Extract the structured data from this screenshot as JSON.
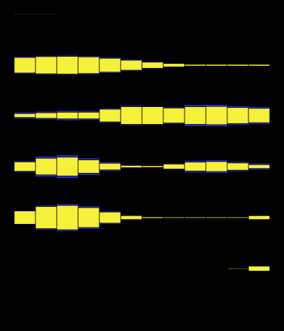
{
  "chart_data": {
    "type": "bar",
    "subtype": "symmetric-stream-rows",
    "background": "#000000",
    "bar_color": "#f5f03a",
    "edge_color": "#2a2ad8",
    "columns": 12,
    "grid": false,
    "legend": "none",
    "rows": [
      {
        "values": [
          0.12,
          0.12,
          0.1,
          0.1,
          0.08,
          0.07,
          0.06,
          0.04,
          0.03,
          0.03,
          0.02,
          0.01
        ],
        "edge": [
          0,
          0,
          0,
          0,
          0,
          0,
          0,
          0,
          0,
          0,
          0,
          0
        ]
      },
      {
        "values": [
          2.8,
          3.1,
          3.2,
          3.0,
          2.5,
          1.8,
          1.1,
          0.6,
          0.3,
          0.3,
          0.3,
          0.3
        ],
        "edge": [
          0.15,
          0.15,
          0.15,
          0.15,
          0.15,
          0.15,
          0.12,
          0.1,
          0.05,
          0.05,
          0.05,
          0.05
        ]
      },
      {
        "values": [
          0.7,
          1.0,
          1.2,
          1.2,
          2.3,
          3.2,
          3.2,
          2.7,
          3.2,
          3.3,
          2.9,
          2.6
        ],
        "edge": [
          0.2,
          0.2,
          0.25,
          0.2,
          0.15,
          0.15,
          0.1,
          0.15,
          0.3,
          0.3,
          0.25,
          0.25
        ]
      },
      {
        "values": [
          1.7,
          3.0,
          3.4,
          2.4,
          1.2,
          0.4,
          0.3,
          0.9,
          1.6,
          1.8,
          1.3,
          0.7
        ],
        "edge": [
          0.15,
          0.3,
          0.35,
          0.3,
          0.2,
          0.1,
          0.05,
          0.1,
          0.25,
          0.25,
          0.2,
          0.2
        ]
      },
      {
        "values": [
          2.4,
          4.0,
          4.4,
          3.6,
          2.0,
          0.7,
          0.25,
          0.2,
          0.2,
          0.2,
          0.2,
          0.7
        ],
        "edge": [
          0.05,
          0.15,
          0.25,
          0.25,
          0.15,
          0.1,
          0,
          0,
          0,
          0,
          0,
          0
        ]
      },
      {
        "values": [
          0.03,
          0.05,
          0.07,
          0.08,
          0.06,
          0.05,
          0.04,
          0.04,
          0.05,
          0.06,
          0.15,
          0.9
        ],
        "edge": [
          0,
          0,
          0,
          0,
          0,
          0,
          0,
          0,
          0,
          0,
          0,
          0
        ]
      },
      {
        "values": [
          0.01,
          0.02,
          0.02,
          0.02,
          0.03,
          0.03,
          0.04,
          0.05,
          0.06,
          0.06,
          0.05,
          0.04
        ],
        "edge": [
          0,
          0,
          0,
          0,
          0,
          0,
          0,
          0,
          0,
          0,
          0,
          0
        ]
      }
    ]
  }
}
